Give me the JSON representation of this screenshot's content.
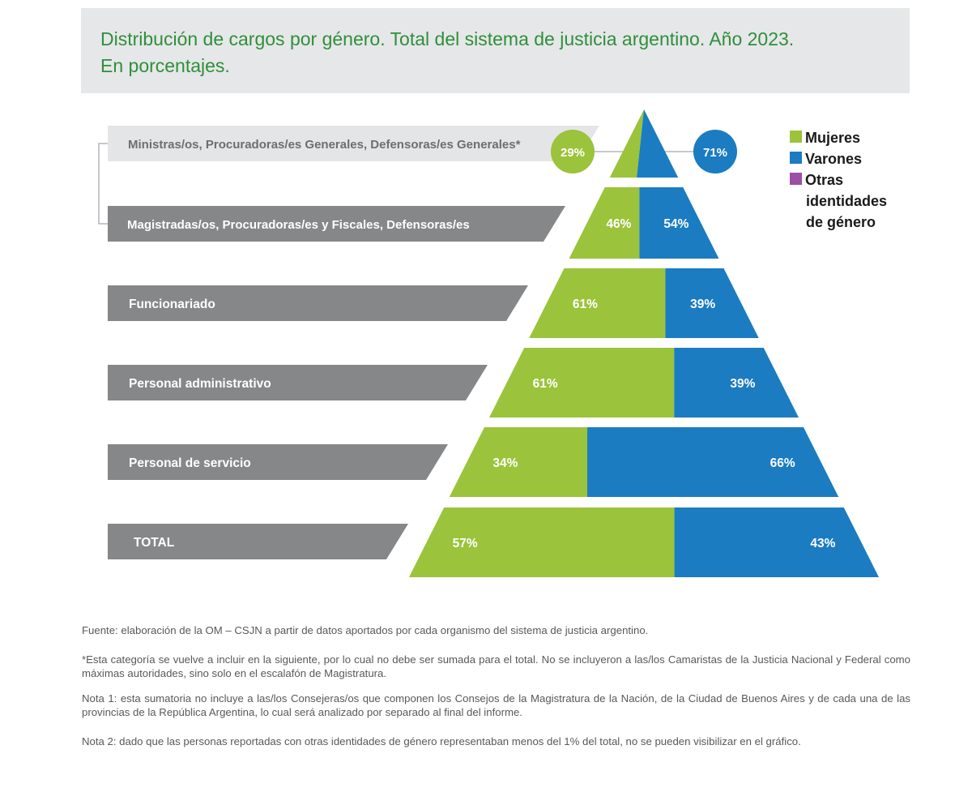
{
  "title_line1": "Distribución de cargos por género. Total del sistema de justicia argentino. Año 2023.",
  "title_line2": "En porcentajes.",
  "colors": {
    "mujeres": "#9bc33b",
    "varones": "#1b7cc1",
    "otras": "#9b4fa5",
    "band_dark": "#868789",
    "band_light": "#e4e5e6",
    "title": "#2f8f3c"
  },
  "chart_data": {
    "type": "bar",
    "subtype": "pyramid-stacked-100",
    "unit": "%",
    "categories": [
      "Ministras/os, Procuradoras/es Generales, Defensoras/es Generales*",
      "Magistradas/os, Procuradoras/es y Fiscales, Defensoras/es",
      "Funcionariado",
      "Personal administrativo",
      "Personal de servicio",
      "TOTAL"
    ],
    "series": [
      {
        "name": "Mujeres",
        "values": [
          29,
          46,
          61,
          61,
          34,
          57
        ]
      },
      {
        "name": "Varones",
        "values": [
          71,
          54,
          39,
          39,
          66,
          43
        ]
      },
      {
        "name": "Otras identidades de género",
        "values": [
          0,
          0,
          0,
          0,
          0,
          0
        ]
      }
    ],
    "legend": [
      "Mujeres",
      "Varones",
      "Otras",
      "identidades",
      "de género"
    ],
    "legend_position": "top-right"
  },
  "notes": {
    "source": "Fuente: elaboración de la OM – CSJN a partir de datos aportados por cada organismo del sistema de justicia argentino.",
    "asterisk": "*Esta categoría se vuelve a incluir en la siguiente, por lo cual no debe ser sumada para el total. No se incluyeron a las/los Camaristas de la Justicia Nacional y Federal como máximas autoridades, sino solo en el escalafón de Magistratura.",
    "nota1": "Nota 1: esta sumatoria no incluye a las/los Consejeras/os que componen los Consejos de la Magistratura de la Nación, de la Ciudad de Buenos Aires y de cada una de las provincias de la República Argentina, lo cual será analizado por separado al final del informe.",
    "nota2": "Nota 2: dado que las personas reportadas con otras identidades de género representaban menos del 1% del total, no se pueden visibilizar en el gráfico."
  }
}
